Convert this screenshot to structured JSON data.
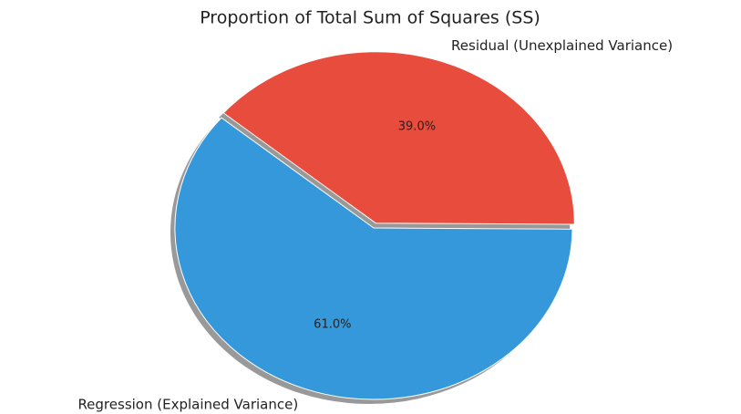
{
  "chart_data": {
    "type": "pie",
    "title": "Proportion of Total Sum of Squares (SS)",
    "categories": [
      "Regression (Explained Variance)",
      "Residual (Unexplained Variance)"
    ],
    "values": [
      61.0,
      39.0
    ],
    "value_labels": [
      "61.0%",
      "39.0%"
    ],
    "colors": [
      "#3498db",
      "#e74c3c"
    ],
    "startangle": 140,
    "counterclock": true,
    "shadow": true,
    "explode": [
      0,
      0.03
    ]
  }
}
